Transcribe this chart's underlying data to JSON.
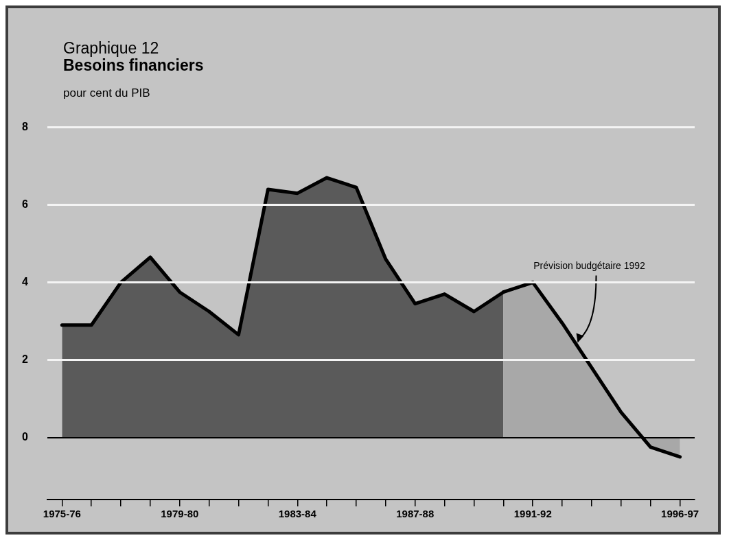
{
  "chart_data": {
    "type": "area",
    "title": "Graphique 12",
    "subtitle": "Besoins financiers",
    "ylabel": "pour cent du PIB",
    "categories": [
      "1975-76",
      null,
      null,
      null,
      "1979-80",
      null,
      null,
      null,
      "1983-84",
      null,
      null,
      null,
      "1987-88",
      null,
      null,
      null,
      "1991-92",
      null,
      null,
      null,
      null,
      "1996-97"
    ],
    "series": [
      {
        "color": "#5a5a5a",
        "values": [
          2.9,
          2.9,
          4.0,
          4.65,
          3.75,
          3.25,
          2.65,
          6.4,
          6.3,
          6.7,
          6.45,
          4.6,
          3.45,
          3.7,
          3.25,
          3.75,
          null,
          null,
          null,
          null,
          null,
          null
        ]
      },
      {
        "name": "Prévision budgétaire 1992",
        "color": "#a8a8a8",
        "values": [
          null,
          null,
          null,
          null,
          null,
          null,
          null,
          null,
          null,
          null,
          null,
          null,
          null,
          null,
          null,
          3.75,
          4.0,
          2.95,
          1.8,
          0.65,
          -0.25,
          -0.5
        ]
      }
    ],
    "ylim": [
      -1.6,
      8
    ],
    "yticks": [
      0,
      2,
      4,
      6,
      8
    ],
    "grid": "y"
  }
}
